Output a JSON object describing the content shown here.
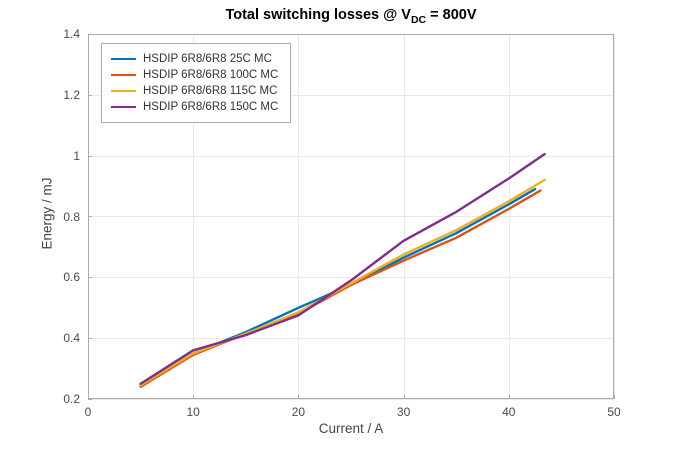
{
  "title": {
    "prefix": "Total switching losses @ V",
    "sub": "DC",
    "suffix": " = 800V"
  },
  "chart_data": {
    "type": "line",
    "title": "Total switching losses @ V_DC = 800V",
    "xlabel": "Current / A",
    "ylabel": "Energy / mJ",
    "xlim": [
      0,
      50
    ],
    "ylim": [
      0.2,
      1.4
    ],
    "x_ticks": [
      "0",
      "10",
      "20",
      "30",
      "40",
      "50"
    ],
    "y_ticks": [
      "0.2",
      "0.4",
      "0.6",
      "0.8",
      "1",
      "1.2",
      "1.4"
    ],
    "grid": true,
    "legend_position": "top-left",
    "series": [
      {
        "name": "HSDIP 6R8/6R8 25C MC",
        "color": "#0072BD",
        "x": [
          5,
          10,
          15,
          20,
          25,
          30,
          35,
          40,
          42.5
        ],
        "y": [
          0.245,
          0.35,
          0.42,
          0.5,
          0.575,
          0.665,
          0.745,
          0.84,
          0.89
        ]
      },
      {
        "name": "HSDIP 6R8/6R8 100C MC",
        "color": "#D95319",
        "x": [
          5,
          10,
          15,
          20,
          25,
          30,
          35,
          40,
          43
        ],
        "y": [
          0.24,
          0.345,
          0.415,
          0.48,
          0.575,
          0.655,
          0.73,
          0.825,
          0.885
        ]
      },
      {
        "name": "HSDIP 6R8/6R8 115C MC",
        "color": "#EDB120",
        "x": [
          5,
          10,
          15,
          20,
          25,
          30,
          35,
          40,
          43.4
        ],
        "y": [
          0.245,
          0.35,
          0.415,
          0.485,
          0.58,
          0.675,
          0.755,
          0.85,
          0.92
        ]
      },
      {
        "name": "HSDIP 6R8/6R8 150C MC",
        "color": "#7E2F8E",
        "x": [
          5,
          10,
          15,
          20,
          25,
          30,
          35,
          40,
          43.4
        ],
        "y": [
          0.25,
          0.36,
          0.41,
          0.475,
          0.59,
          0.72,
          0.815,
          0.925,
          1.005
        ]
      }
    ]
  },
  "colors": {
    "axis": "#ababab",
    "grid": "#e8e8e8",
    "tick_label": "#4a4a4a",
    "background": "#ffffff"
  }
}
